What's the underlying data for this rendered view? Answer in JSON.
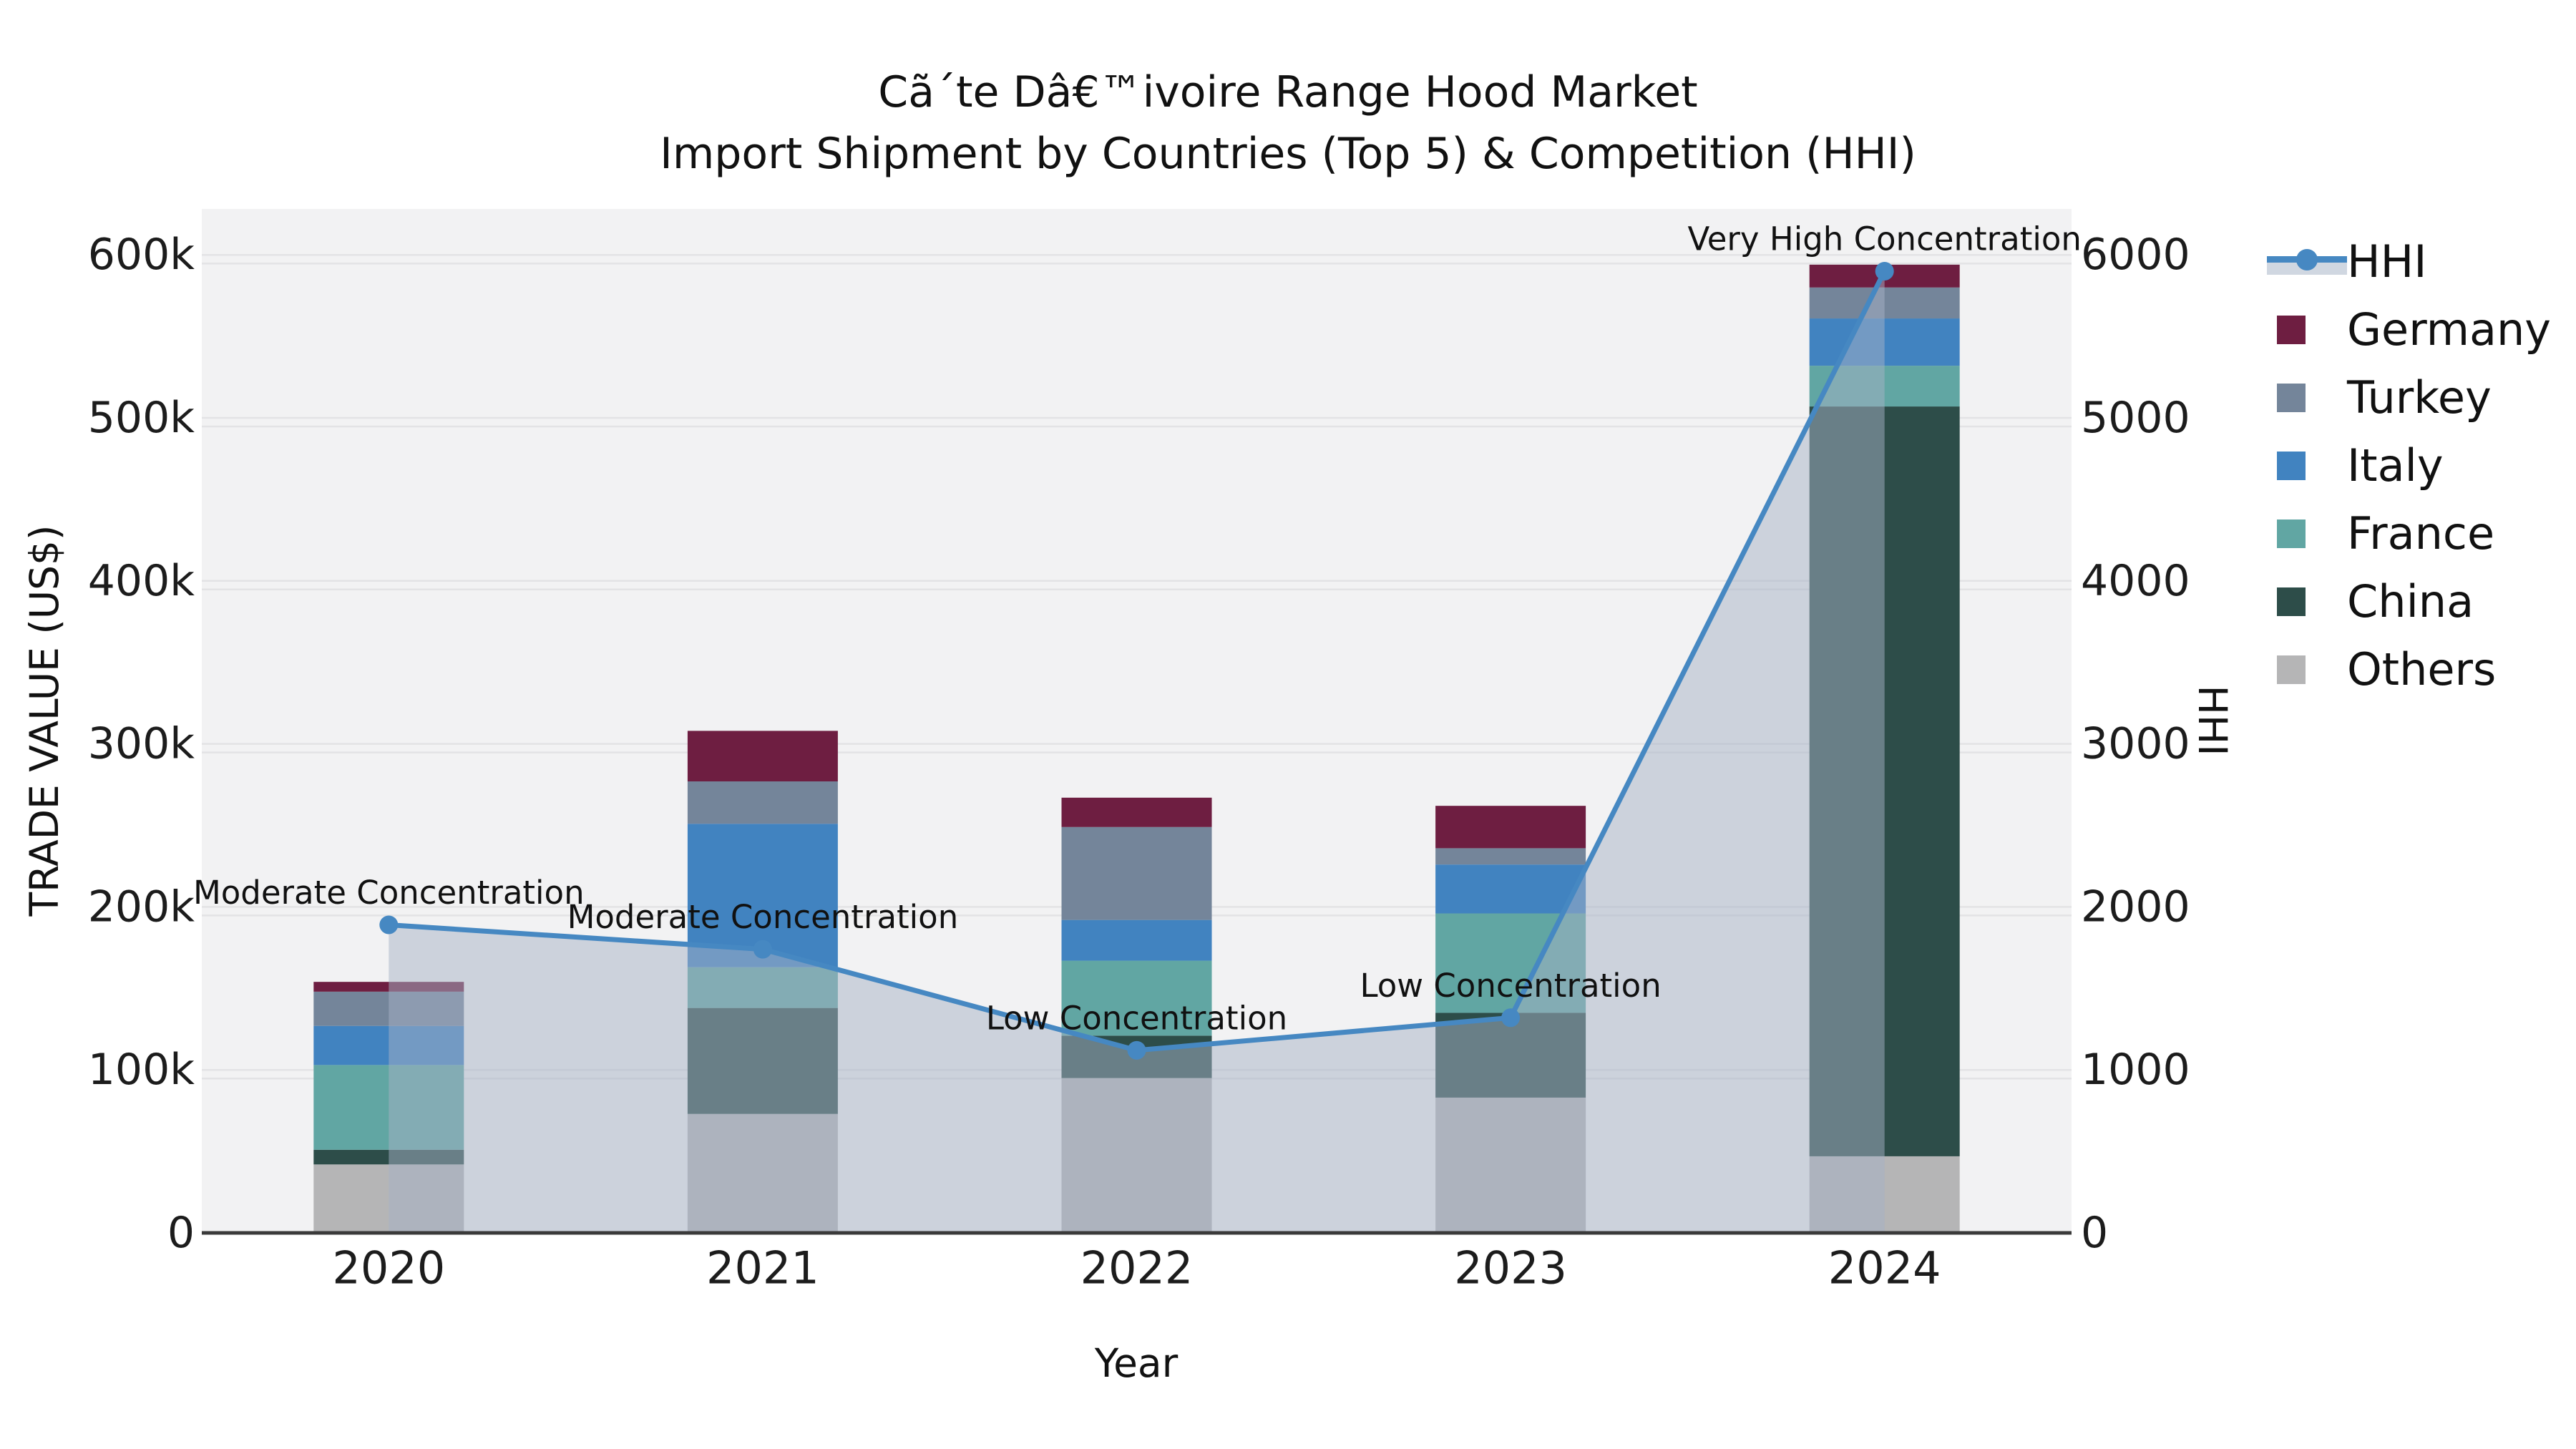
{
  "title": {
    "line1": "Cã´te Dâ€™ivoire Range Hood Market",
    "line2": "Import Shipment by Countries (Top 5) & Competition (HHI)"
  },
  "axes": {
    "left": {
      "title": "TRADE VALUE (US$)",
      "ticks": [
        {
          "label": "0",
          "value": 0
        },
        {
          "label": "100k",
          "value": 100000
        },
        {
          "label": "200k",
          "value": 200000
        },
        {
          "label": "300k",
          "value": 300000
        },
        {
          "label": "400k",
          "value": 400000
        },
        {
          "label": "500k",
          "value": 500000
        },
        {
          "label": "600k",
          "value": 600000
        }
      ]
    },
    "right": {
      "title": "HHI",
      "ticks": [
        {
          "label": "0",
          "value": 0
        },
        {
          "label": "1000",
          "value": 1000
        },
        {
          "label": "2000",
          "value": 2000
        },
        {
          "label": "3000",
          "value": 3000
        },
        {
          "label": "4000",
          "value": 4000
        },
        {
          "label": "5000",
          "value": 5000
        },
        {
          "label": "6000",
          "value": 6000
        }
      ]
    },
    "bottom": {
      "title": "Year"
    }
  },
  "legend": [
    {
      "label": "HHI",
      "type": "line",
      "color": "#4688c2"
    },
    {
      "label": "Germany",
      "type": "swatch",
      "color": "#6e1e41"
    },
    {
      "label": "Turkey",
      "type": "swatch",
      "color": "#74859a"
    },
    {
      "label": "Italy",
      "type": "swatch",
      "color": "#4183c0"
    },
    {
      "label": "France",
      "type": "swatch",
      "color": "#61a6a3"
    },
    {
      "label": "China",
      "type": "swatch",
      "color": "#2d4d49"
    },
    {
      "label": "Others",
      "type": "swatch",
      "color": "#b5b5b6"
    }
  ],
  "colors": {
    "plot_background": "#f2f2f3",
    "gridline": "#e3e3e5",
    "axis_spine": "#3a3a3a",
    "tick_text": "#1c1c1c",
    "annotation_text": "#111111",
    "hhi_line": "#4688c2",
    "hhi_area": "rgba(166,178,198,0.5)"
  },
  "chart_data": {
    "type": "combo-stacked-bar-line",
    "categories": [
      "2020",
      "2021",
      "2022",
      "2023",
      "2024"
    ],
    "bar_unit": "US$",
    "bar_series": [
      {
        "name": "Others",
        "color": "#b5b5b6",
        "values": [
          42000,
          73000,
          95000,
          83000,
          47000
        ]
      },
      {
        "name": "China",
        "color": "#2d4d49",
        "values": [
          9000,
          65000,
          26000,
          52000,
          460000
        ]
      },
      {
        "name": "France",
        "color": "#61a6a3",
        "values": [
          52000,
          25000,
          46000,
          61000,
          25000
        ]
      },
      {
        "name": "Italy",
        "color": "#4183c0",
        "values": [
          24000,
          88000,
          25000,
          30000,
          29000
        ]
      },
      {
        "name": "Turkey",
        "color": "#74859a",
        "values": [
          21000,
          26000,
          57000,
          10000,
          19000
        ]
      },
      {
        "name": "Germany",
        "color": "#6e1e41",
        "values": [
          6000,
          31000,
          18000,
          26000,
          14000
        ]
      }
    ],
    "line_series": {
      "name": "HHI",
      "values": [
        1890,
        1740,
        1120,
        1320,
        5900
      ]
    },
    "annotations": [
      {
        "index": 0,
        "text": "Moderate Concentration"
      },
      {
        "index": 1,
        "text": "Moderate Concentration"
      },
      {
        "index": 2,
        "text": "Low Concentration"
      },
      {
        "index": 3,
        "text": "Low Concentration"
      },
      {
        "index": 4,
        "text": "Very High Concentration"
      }
    ],
    "ylim_left": [
      0,
      628000
    ],
    "ylim_right": [
      0,
      6280
    ],
    "grid": true,
    "legend_position": "right"
  }
}
